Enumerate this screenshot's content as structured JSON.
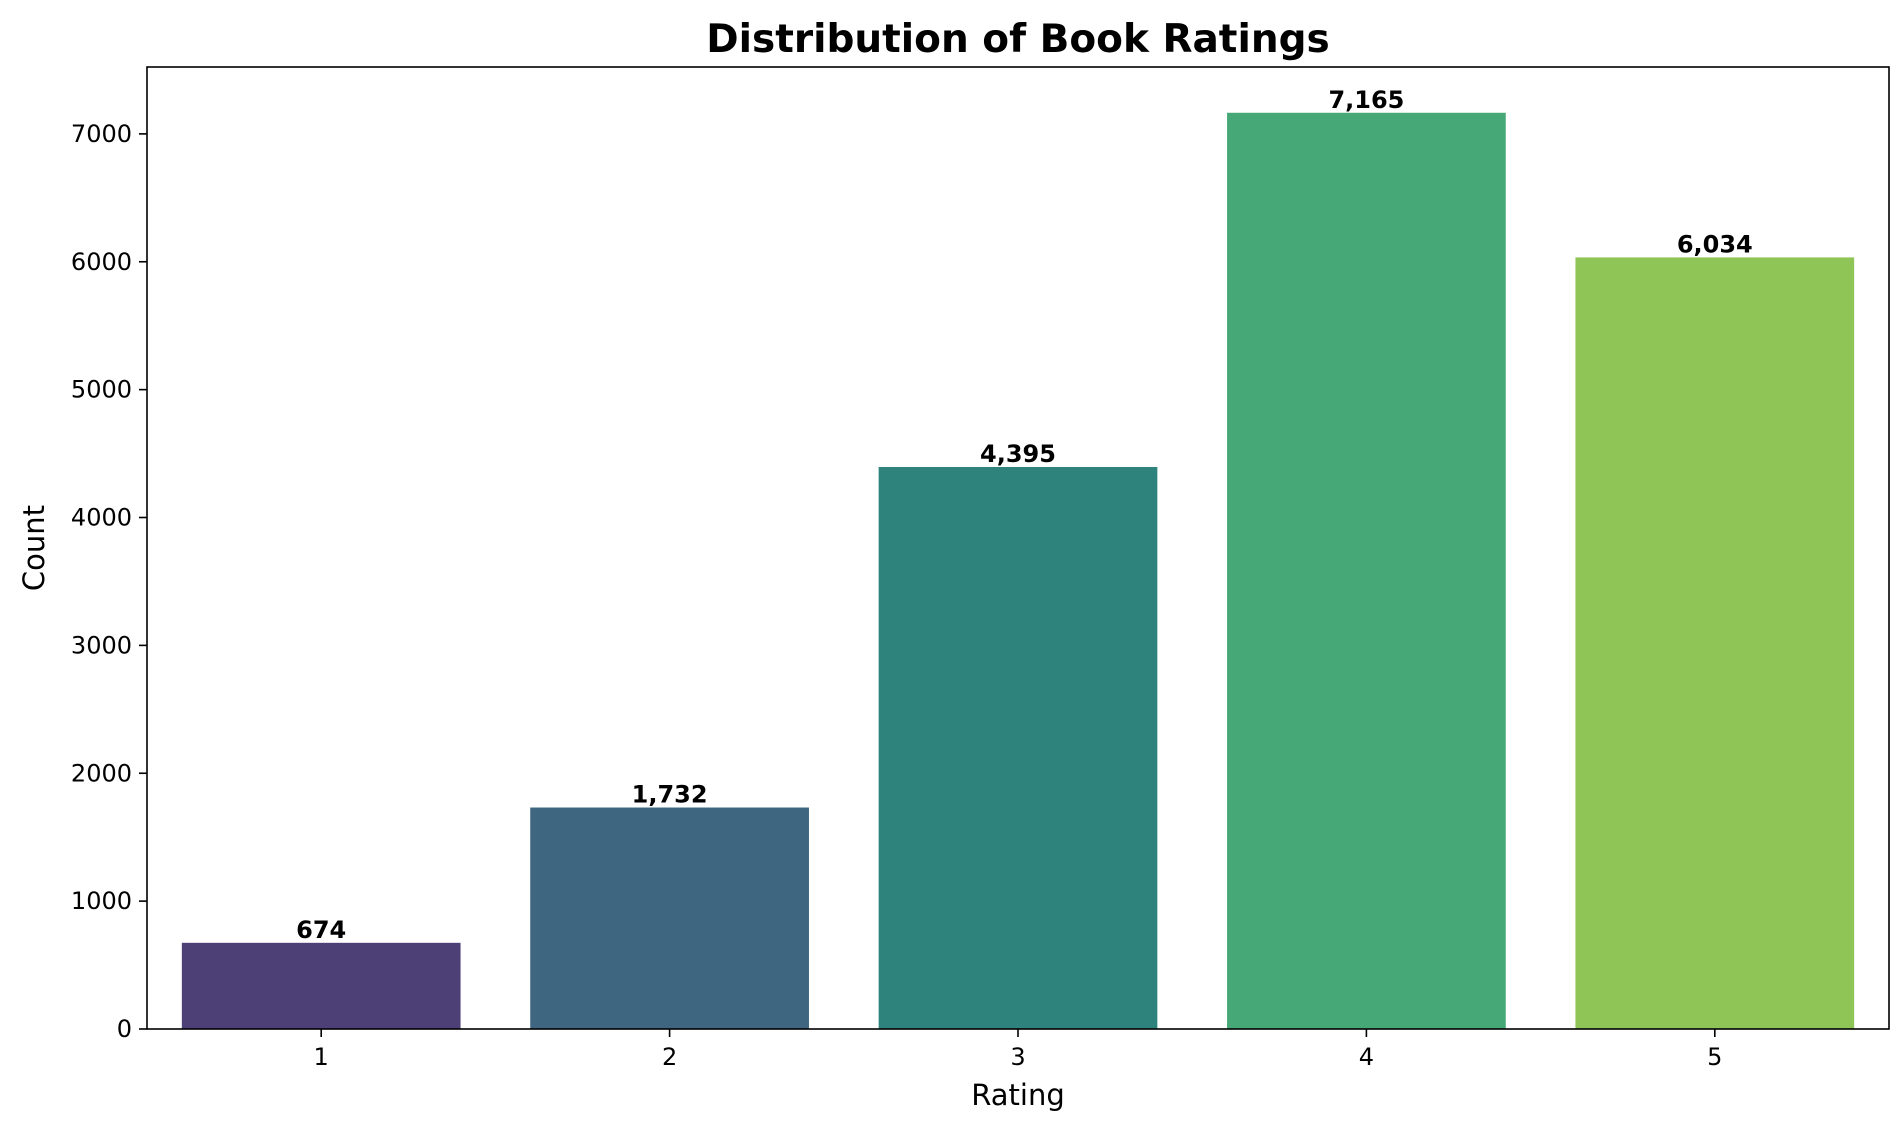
{
  "chart_data": {
    "type": "bar",
    "title": "Distribution of Book Ratings",
    "xlabel": "Rating",
    "ylabel": "Count",
    "categories": [
      "1",
      "2",
      "3",
      "4",
      "5"
    ],
    "values": [
      674,
      1732,
      4395,
      7165,
      6034
    ],
    "data_labels": [
      "674",
      "1,732",
      "4,395",
      "7,165",
      "6,034"
    ],
    "colors": [
      "#4d4077",
      "#3e6680",
      "#2e837d",
      "#47a877",
      "#8fc456"
    ],
    "ylim": [
      0,
      7523
    ],
    "yticks": [
      0,
      1000,
      2000,
      3000,
      4000,
      5000,
      6000,
      7000
    ],
    "grid": false,
    "legend": "none"
  }
}
